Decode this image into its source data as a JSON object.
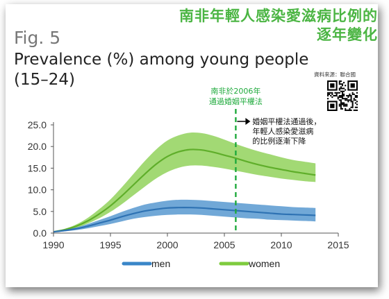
{
  "headline": [
    "南非年輕人感染愛滋病比例的",
    "逐年變化"
  ],
  "fig_label": "Fig. 5",
  "source": "資料來源：聯合國",
  "colors": {
    "men": "#3a86c8",
    "women": "#7ecb3e",
    "vline": "#1faa3c",
    "headline": "#4bb543"
  },
  "chart_data": {
    "type": "line",
    "title": "Prevalence (%) among young people (15–24)",
    "title_lines": [
      "Prevalence (%) among young people",
      "(15–24)"
    ],
    "xlabel": "",
    "ylabel": "",
    "xlim": [
      1990,
      2015
    ],
    "ylim": [
      0,
      25
    ],
    "xticks": [
      "1990",
      "1995",
      "2000",
      "2005",
      "2010",
      "2015"
    ],
    "yticks": [
      "0.0",
      "5.0",
      "10.0",
      "15.0",
      "20.0",
      "25.0"
    ],
    "grid": false,
    "legend_position": "bottom",
    "series": [
      {
        "name": "men",
        "color": "#3a86c8",
        "x": [
          1990,
          1991,
          1992,
          1993,
          1994,
          1995,
          1996,
          1997,
          1998,
          1999,
          2000,
          2001,
          2002,
          2003,
          2004,
          2005,
          2006,
          2007,
          2008,
          2009,
          2010,
          2011,
          2012,
          2013
        ],
        "y": [
          0.3,
          0.6,
          1.0,
          1.6,
          2.3,
          3.0,
          3.8,
          4.5,
          5.1,
          5.5,
          5.8,
          5.9,
          5.9,
          5.8,
          5.6,
          5.4,
          5.2,
          5.0,
          4.8,
          4.6,
          4.4,
          4.3,
          4.2,
          4.1
        ],
        "lower": [
          0.2,
          0.4,
          0.7,
          1.1,
          1.6,
          2.1,
          2.7,
          3.3,
          3.7,
          4.0,
          4.2,
          4.3,
          4.3,
          4.2,
          4.0,
          3.8,
          3.6,
          3.4,
          3.3,
          3.1,
          3.0,
          2.9,
          2.8,
          2.7
        ],
        "upper": [
          0.4,
          0.8,
          1.3,
          2.1,
          3.0,
          3.9,
          4.9,
          5.8,
          6.6,
          7.1,
          7.5,
          7.7,
          7.7,
          7.6,
          7.4,
          7.2,
          7.0,
          6.8,
          6.6,
          6.4,
          6.2,
          6.0,
          5.9,
          5.8
        ]
      },
      {
        "name": "women",
        "color": "#7ecb3e",
        "x": [
          1990,
          1991,
          1992,
          1993,
          1994,
          1995,
          1996,
          1997,
          1998,
          1999,
          2000,
          2001,
          2002,
          2003,
          2004,
          2005,
          2006,
          2007,
          2008,
          2009,
          2010,
          2011,
          2012,
          2013
        ],
        "y": [
          0.3,
          0.8,
          1.6,
          2.8,
          4.4,
          6.3,
          8.6,
          11.1,
          13.6,
          15.9,
          17.7,
          18.8,
          19.3,
          19.2,
          18.7,
          18.0,
          17.3,
          16.5,
          15.8,
          15.2,
          14.7,
          14.2,
          13.8,
          13.4
        ],
        "lower": [
          0.2,
          0.6,
          1.2,
          2.2,
          3.4,
          4.9,
          6.7,
          8.7,
          10.7,
          12.6,
          14.1,
          15.1,
          15.6,
          15.6,
          15.3,
          14.9,
          14.4,
          13.9,
          13.4,
          13.0,
          12.6,
          12.3,
          12.0,
          11.8
        ],
        "upper": [
          0.4,
          1.0,
          2.0,
          3.5,
          5.5,
          7.8,
          10.6,
          13.6,
          16.6,
          19.3,
          21.4,
          22.6,
          23.2,
          23.1,
          22.5,
          21.6,
          20.6,
          19.7,
          18.9,
          18.2,
          17.5,
          16.9,
          16.5,
          16.1
        ]
      }
    ],
    "annotations": [
      {
        "x": 2006,
        "label_lines": [
          "南非於2006年",
          "通過婚姻平權法"
        ]
      },
      {
        "label_lines": [
          "婚姻平權法通過後，",
          "年輕人感染愛滋病",
          "的比例逐漸下降"
        ]
      }
    ]
  }
}
